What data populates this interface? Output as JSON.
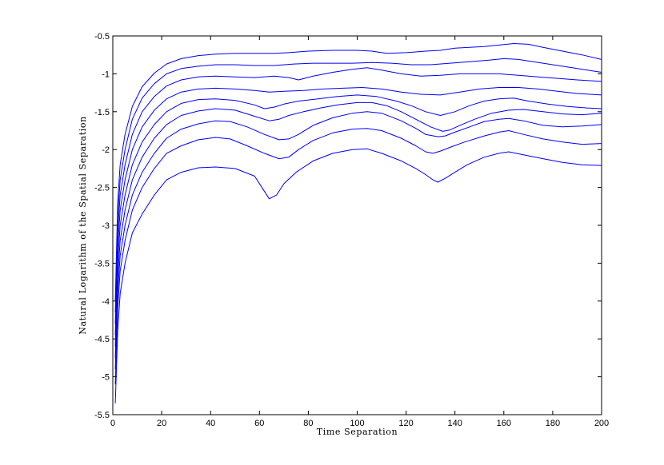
{
  "chart_data": {
    "type": "line",
    "title": "",
    "xlabel": "Time Separation",
    "ylabel": "Natural Logarithm of the Spatial Separation",
    "xlim": [
      0,
      200
    ],
    "ylim": [
      -5.5,
      -0.5
    ],
    "xticks": [
      0,
      20,
      40,
      60,
      80,
      100,
      120,
      140,
      160,
      180,
      200
    ],
    "yticks": [
      -5.5,
      -5,
      -4.5,
      -4,
      -3.5,
      -3,
      -2.5,
      -2,
      -1.5,
      -1,
      -0.5
    ],
    "xtick_labels": [
      "0",
      "20",
      "40",
      "60",
      "80",
      "100",
      "120",
      "140",
      "160",
      "180",
      "200"
    ],
    "ytick_labels": [
      "-5.5",
      "-5",
      "-4.5",
      "-4",
      "-3.5",
      "-3",
      "-2.5",
      "-2",
      "-1.5",
      "-1",
      "-0.5"
    ],
    "grid": false,
    "line_color": "#0000ff",
    "series": [
      {
        "x": [
          1,
          2,
          3,
          5,
          8,
          12,
          17,
          22,
          28,
          35,
          42,
          50,
          58,
          62,
          64,
          67,
          70,
          75,
          82,
          90,
          98,
          104,
          110,
          118,
          124,
          128,
          131,
          133,
          136,
          140,
          145,
          152,
          158,
          162,
          168,
          176,
          184,
          192,
          200
        ],
        "y": [
          -5.35,
          -4.4,
          -3.9,
          -3.5,
          -3.1,
          -2.85,
          -2.6,
          -2.4,
          -2.3,
          -2.24,
          -2.23,
          -2.25,
          -2.35,
          -2.55,
          -2.65,
          -2.6,
          -2.45,
          -2.3,
          -2.15,
          -2.05,
          -2.0,
          -1.99,
          -2.05,
          -2.15,
          -2.25,
          -2.33,
          -2.4,
          -2.43,
          -2.38,
          -2.3,
          -2.2,
          -2.1,
          -2.05,
          -2.03,
          -2.07,
          -2.12,
          -2.17,
          -2.2,
          -2.21
        ]
      },
      {
        "x": [
          1,
          2,
          3,
          5,
          8,
          12,
          17,
          22,
          28,
          35,
          42,
          48,
          55,
          62,
          68,
          72,
          76,
          82,
          90,
          98,
          104,
          110,
          118,
          124,
          128,
          131,
          134,
          138,
          144,
          152,
          158,
          162,
          168,
          176,
          184,
          192,
          200
        ],
        "y": [
          -5.1,
          -4.1,
          -3.6,
          -3.2,
          -2.8,
          -2.5,
          -2.25,
          -2.05,
          -1.95,
          -1.87,
          -1.84,
          -1.86,
          -1.95,
          -2.05,
          -2.12,
          -2.1,
          -2.0,
          -1.88,
          -1.78,
          -1.73,
          -1.72,
          -1.75,
          -1.85,
          -1.95,
          -2.03,
          -2.05,
          -2.02,
          -1.97,
          -1.9,
          -1.82,
          -1.77,
          -1.75,
          -1.8,
          -1.86,
          -1.9,
          -1.93,
          -1.92
        ]
      },
      {
        "x": [
          1,
          2,
          3,
          5,
          8,
          12,
          17,
          22,
          28,
          35,
          42,
          48,
          55,
          62,
          68,
          72,
          76,
          82,
          90,
          98,
          104,
          110,
          118,
          124,
          128,
          133,
          136,
          140,
          146,
          152,
          158,
          162,
          168,
          176,
          184,
          192,
          200
        ],
        "y": [
          -4.9,
          -3.9,
          -3.4,
          -3.0,
          -2.6,
          -2.3,
          -2.05,
          -1.85,
          -1.73,
          -1.66,
          -1.62,
          -1.63,
          -1.7,
          -1.8,
          -1.87,
          -1.86,
          -1.8,
          -1.68,
          -1.58,
          -1.52,
          -1.5,
          -1.52,
          -1.62,
          -1.72,
          -1.8,
          -1.83,
          -1.82,
          -1.77,
          -1.7,
          -1.63,
          -1.6,
          -1.59,
          -1.62,
          -1.68,
          -1.7,
          -1.69,
          -1.67
        ]
      },
      {
        "x": [
          1,
          2,
          3,
          5,
          8,
          12,
          17,
          22,
          28,
          35,
          42,
          50,
          58,
          64,
          68,
          72,
          78,
          85,
          92,
          100,
          106,
          112,
          118,
          124,
          130,
          135,
          138,
          142,
          148,
          155,
          162,
          168,
          176,
          184,
          192,
          200
        ],
        "y": [
          -4.75,
          -3.7,
          -3.2,
          -2.8,
          -2.4,
          -2.1,
          -1.85,
          -1.67,
          -1.55,
          -1.49,
          -1.46,
          -1.48,
          -1.56,
          -1.62,
          -1.6,
          -1.55,
          -1.5,
          -1.45,
          -1.41,
          -1.38,
          -1.38,
          -1.42,
          -1.5,
          -1.6,
          -1.7,
          -1.76,
          -1.74,
          -1.68,
          -1.6,
          -1.52,
          -1.48,
          -1.47,
          -1.5,
          -1.53,
          -1.54,
          -1.52
        ]
      },
      {
        "x": [
          1,
          2,
          3,
          5,
          8,
          12,
          17,
          22,
          28,
          35,
          42,
          50,
          58,
          62,
          66,
          70,
          76,
          84,
          92,
          100,
          108,
          116,
          122,
          128,
          134,
          140,
          146,
          152,
          158,
          164,
          170,
          178,
          186,
          194,
          200
        ],
        "y": [
          -4.6,
          -3.5,
          -3.0,
          -2.6,
          -2.2,
          -1.9,
          -1.67,
          -1.5,
          -1.39,
          -1.34,
          -1.33,
          -1.35,
          -1.41,
          -1.46,
          -1.44,
          -1.4,
          -1.36,
          -1.33,
          -1.3,
          -1.28,
          -1.3,
          -1.36,
          -1.42,
          -1.5,
          -1.55,
          -1.5,
          -1.42,
          -1.36,
          -1.33,
          -1.32,
          -1.36,
          -1.4,
          -1.43,
          -1.45,
          -1.46
        ]
      },
      {
        "x": [
          1,
          2,
          3,
          5,
          8,
          12,
          17,
          22,
          28,
          35,
          42,
          50,
          58,
          64,
          70,
          78,
          86,
          94,
          102,
          110,
          118,
          126,
          134,
          142,
          150,
          158,
          166,
          174,
          182,
          190,
          200
        ],
        "y": [
          -4.45,
          -3.3,
          -2.8,
          -2.4,
          -2.0,
          -1.7,
          -1.48,
          -1.33,
          -1.24,
          -1.2,
          -1.19,
          -1.2,
          -1.22,
          -1.24,
          -1.23,
          -1.22,
          -1.2,
          -1.19,
          -1.18,
          -1.2,
          -1.24,
          -1.27,
          -1.28,
          -1.24,
          -1.2,
          -1.18,
          -1.18,
          -1.2,
          -1.23,
          -1.26,
          -1.28
        ]
      },
      {
        "x": [
          1,
          2,
          3,
          5,
          8,
          12,
          17,
          22,
          28,
          35,
          42,
          50,
          58,
          66,
          72,
          76,
          82,
          90,
          98,
          104,
          110,
          118,
          126,
          134,
          142,
          150,
          158,
          166,
          174,
          182,
          190,
          200
        ],
        "y": [
          -4.3,
          -3.1,
          -2.6,
          -2.2,
          -1.8,
          -1.5,
          -1.3,
          -1.16,
          -1.08,
          -1.04,
          -1.03,
          -1.04,
          -1.05,
          -1.03,
          -1.05,
          -1.08,
          -1.03,
          -0.98,
          -0.94,
          -0.92,
          -0.95,
          -1.0,
          -1.03,
          -1.02,
          -1.0,
          -1.0,
          -1.0,
          -1.02,
          -1.04,
          -1.06,
          -1.08,
          -1.1
        ]
      },
      {
        "x": [
          1,
          2,
          3,
          5,
          8,
          12,
          17,
          22,
          28,
          35,
          42,
          50,
          58,
          66,
          74,
          82,
          90,
          98,
          106,
          114,
          122,
          130,
          138,
          146,
          154,
          160,
          166,
          172,
          180,
          188,
          196,
          200
        ],
        "y": [
          -4.15,
          -2.9,
          -2.4,
          -2.0,
          -1.6,
          -1.32,
          -1.13,
          -1.0,
          -0.93,
          -0.9,
          -0.88,
          -0.88,
          -0.89,
          -0.89,
          -0.87,
          -0.86,
          -0.86,
          -0.86,
          -0.85,
          -0.86,
          -0.88,
          -0.88,
          -0.86,
          -0.84,
          -0.82,
          -0.8,
          -0.81,
          -0.84,
          -0.88,
          -0.92,
          -0.96,
          -0.98
        ]
      },
      {
        "x": [
          1,
          2,
          3,
          5,
          8,
          12,
          17,
          22,
          28,
          35,
          42,
          50,
          58,
          66,
          72,
          80,
          90,
          100,
          106,
          112,
          120,
          128,
          134,
          140,
          146,
          152,
          158,
          164,
          170,
          176,
          184,
          192,
          200
        ],
        "y": [
          -4.0,
          -2.7,
          -2.2,
          -1.8,
          -1.43,
          -1.17,
          -0.99,
          -0.87,
          -0.8,
          -0.76,
          -0.74,
          -0.73,
          -0.73,
          -0.73,
          -0.72,
          -0.7,
          -0.69,
          -0.69,
          -0.7,
          -0.73,
          -0.72,
          -0.7,
          -0.69,
          -0.66,
          -0.65,
          -0.64,
          -0.62,
          -0.6,
          -0.61,
          -0.65,
          -0.7,
          -0.75,
          -0.81
        ]
      }
    ]
  }
}
